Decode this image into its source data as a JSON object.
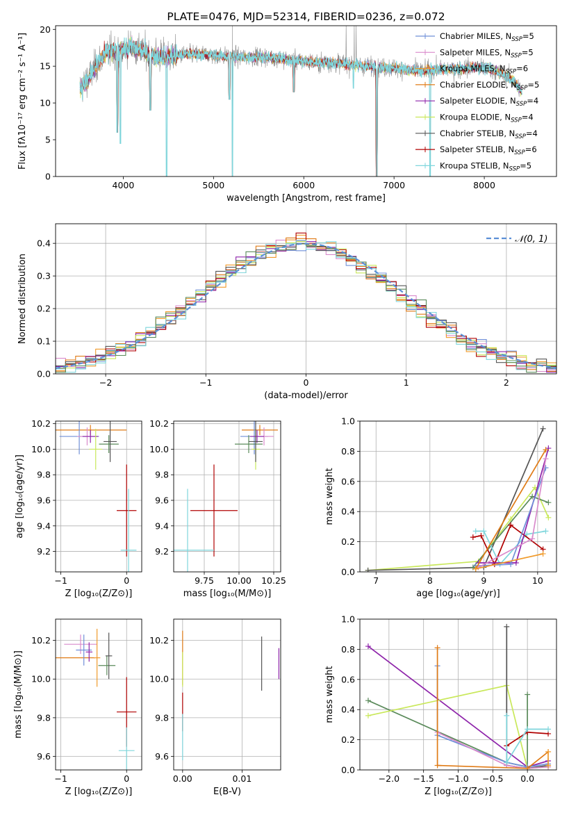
{
  "colors": {
    "chabrier_miles": "#6f8fd8",
    "salpeter_miles": "#d98acb",
    "kroupa_miles": "#f09a2a",
    "chabrier_elodie": "#e07b16",
    "salpeter_elodie": "#8e24aa",
    "kroupa_elodie": "#c9e85a",
    "chabrier_stelib": "#555555",
    "salpeter_stelib": "#b00000",
    "kroupa_stelib": "#7fd6dc",
    "green_stelib": "#5a8a5a",
    "data": "#888888",
    "normal": "#5b8fd6",
    "grid": "#b0b0b0"
  },
  "chart_data": [
    {
      "type": "line",
      "title": "PLATE=0476, MJD=52314, FIBERID=0236, z=0.072",
      "xlabel": "wavelength [Angstrom, rest frame]",
      "ylabel": "Flux [fλ10⁻¹⁷ erg cm⁻² s⁻¹ A⁻¹]",
      "xlim": [
        3250,
        8800
      ],
      "ylim": [
        0,
        20.5
      ],
      "xticks": [
        4000,
        5000,
        6000,
        7000,
        8000
      ],
      "yticks": [
        0,
        5,
        10,
        15,
        20
      ],
      "grid": false,
      "legend_position": "top-right",
      "legend": [
        {
          "label": "Chabrier MILES, N",
          "sub": "SSP",
          "suffix": "=5",
          "color_key": "chabrier_miles"
        },
        {
          "label": "Salpeter MILES, N",
          "sub": "SSP",
          "suffix": "=5",
          "color_key": "salpeter_miles"
        },
        {
          "label": "Kroupa MILES, N",
          "sub": "SSP",
          "suffix": "=6",
          "color_key": "kroupa_miles"
        },
        {
          "label": "Chabrier ELODIE, N",
          "sub": "SSP",
          "suffix": "=5",
          "color_key": "chabrier_elodie"
        },
        {
          "label": "Salpeter ELODIE, N",
          "sub": "SSP",
          "suffix": "=4",
          "color_key": "salpeter_elodie"
        },
        {
          "label": "Kroupa ELODIE, N",
          "sub": "SSP",
          "suffix": "=4",
          "color_key": "kroupa_elodie"
        },
        {
          "label": "Chabrier STELIB, N",
          "sub": "SSP",
          "suffix": "=4",
          "color_key": "chabrier_stelib"
        },
        {
          "label": "Salpeter STELIB, N",
          "sub": "SSP",
          "suffix": "=6",
          "color_key": "salpeter_stelib"
        },
        {
          "label": "Kroupa STELIB, N",
          "sub": "SSP",
          "suffix": "=5",
          "color_key": "kroupa_stelib"
        }
      ],
      "spectrum_anchors": [
        [
          3520,
          12
        ],
        [
          3600,
          13
        ],
        [
          3700,
          15
        ],
        [
          3800,
          16.8
        ],
        [
          3950,
          17.2
        ],
        [
          4100,
          17.6
        ],
        [
          4300,
          16.5
        ],
        [
          4500,
          16.3
        ],
        [
          4700,
          16.6
        ],
        [
          4900,
          16.6
        ],
        [
          5100,
          16.4
        ],
        [
          5300,
          16.2
        ],
        [
          5500,
          16.3
        ],
        [
          5700,
          16.1
        ],
        [
          5900,
          15.8
        ],
        [
          6100,
          15.5
        ],
        [
          6300,
          15.5
        ],
        [
          6500,
          15.3
        ],
        [
          6700,
          15.0
        ],
        [
          6900,
          14.8
        ],
        [
          7100,
          14.6
        ],
        [
          7300,
          14.3
        ],
        [
          7500,
          14.6
        ],
        [
          7700,
          14.6
        ],
        [
          7900,
          14.9
        ],
        [
          8100,
          14.5
        ],
        [
          8300,
          13.3
        ],
        [
          8420,
          11.5
        ]
      ],
      "spectrum_dips": [
        [
          3933,
          6
        ],
        [
          3968,
          4.5
        ],
        [
          4300,
          9
        ],
        [
          4480,
          0
        ],
        [
          5175,
          10.5
        ],
        [
          5210,
          0
        ],
        [
          5890,
          11.5
        ],
        [
          6550,
          12
        ],
        [
          6810,
          0
        ],
        [
          7400,
          0
        ]
      ],
      "spectrum_spikes": [
        [
          5210,
          20.5
        ],
        [
          6470,
          20.5
        ],
        [
          6560,
          20.5
        ],
        [
          6580,
          20.5
        ]
      ]
    },
    {
      "type": "histogram",
      "title": "",
      "xlabel": "(data-model)/error",
      "ylabel": "Normed distribution",
      "xlim": [
        -2.5,
        2.5
      ],
      "ylim": [
        0,
        0.46
      ],
      "xticks": [
        -2,
        -1,
        0,
        1,
        2
      ],
      "yticks": [
        0.0,
        0.1,
        0.2,
        0.3,
        0.4
      ],
      "grid": true,
      "legend_position": "top-right",
      "legend": [
        {
          "label": "𝒩(0, 1)",
          "color_key": "normal",
          "dashed": true
        }
      ],
      "bin_width": 0.1,
      "series_keys": [
        "chabrier_miles",
        "salpeter_miles",
        "kroupa_miles",
        "chabrier_elodie",
        "salpeter_elodie",
        "kroupa_elodie",
        "chabrier_stelib",
        "salpeter_stelib",
        "kroupa_stelib",
        "green_stelib"
      ]
    },
    {
      "type": "scatter",
      "title": "",
      "xlabel": "Z [log₁₀(Z/Z⊙)]",
      "ylabel": "age  [log₁₀(age/yr)]",
      "xlim": [
        -1.08,
        0.23
      ],
      "ylim": [
        9.04,
        10.22
      ],
      "xticks": [
        -1,
        0
      ],
      "yticks": [
        9.2,
        9.4,
        9.6,
        9.8,
        10.0,
        10.2
      ],
      "grid": true,
      "points": [
        {
          "key": "chabrier_elodie",
          "x": -0.55,
          "y": 10.15,
          "ex": 0.55,
          "ey": 0.04
        },
        {
          "key": "chabrier_miles",
          "x": -0.72,
          "y": 10.1,
          "ex": 0.3,
          "ey": 0.14
        },
        {
          "key": "salpeter_miles",
          "x": -0.6,
          "y": 10.1,
          "ex": 0.15,
          "ey": 0.07
        },
        {
          "key": "salpeter_elodie",
          "x": -0.55,
          "y": 10.1,
          "ex": 0.12,
          "ey": 0.05
        },
        {
          "key": "kroupa_elodie",
          "x": -0.47,
          "y": 10.0,
          "ex": 0.1,
          "ey": 0.16
        },
        {
          "key": "green_stelib",
          "x": -0.27,
          "y": 10.04,
          "ex": 0.15,
          "ey": 0.07
        },
        {
          "key": "chabrier_stelib",
          "x": -0.25,
          "y": 10.06,
          "ex": 0.1,
          "ey": 0.16
        },
        {
          "key": "salpeter_stelib",
          "x": 0.0,
          "y": 9.52,
          "ex": 0.15,
          "ey": 0.36
        },
        {
          "key": "kroupa_stelib",
          "x": 0.03,
          "y": 9.21,
          "ex": 0.12,
          "ey": 0.48
        }
      ]
    },
    {
      "type": "scatter",
      "title": "",
      "xlabel": "mass [log₁₀(M/M⊙)]",
      "ylabel": "",
      "xlim": [
        9.53,
        10.3
      ],
      "ylim": [
        9.04,
        10.22
      ],
      "xticks": [
        9.75,
        10.0,
        10.25
      ],
      "tick_labels": [
        "9.75",
        "10.00",
        "10.25"
      ],
      "yticks": [
        9.2,
        9.4,
        9.6,
        9.8,
        10.0,
        10.2
      ],
      "grid": true,
      "points": [
        {
          "key": "chabrier_elodie",
          "x": 10.15,
          "y": 10.15,
          "ex": 0.13,
          "ey": 0.04
        },
        {
          "key": "chabrier_miles",
          "x": 10.11,
          "y": 10.1,
          "ex": 0.1,
          "ey": 0.14
        },
        {
          "key": "salpeter_miles",
          "x": 10.18,
          "y": 10.1,
          "ex": 0.07,
          "ey": 0.07
        },
        {
          "key": "salpeter_elodie",
          "x": 10.13,
          "y": 10.1,
          "ex": 0.05,
          "ey": 0.05
        },
        {
          "key": "kroupa_elodie",
          "x": 10.12,
          "y": 10.0,
          "ex": 0.03,
          "ey": 0.16
        },
        {
          "key": "green_stelib",
          "x": 10.07,
          "y": 10.04,
          "ex": 0.1,
          "ey": 0.07
        },
        {
          "key": "chabrier_stelib",
          "x": 10.12,
          "y": 10.06,
          "ex": 0.05,
          "ey": 0.16
        },
        {
          "key": "salpeter_stelib",
          "x": 9.82,
          "y": 9.52,
          "ex": 0.17,
          "ey": 0.36
        },
        {
          "key": "kroupa_stelib",
          "x": 9.63,
          "y": 9.21,
          "ex": 0.19,
          "ey": 0.48
        }
      ]
    },
    {
      "type": "line",
      "title": "",
      "xlabel": "age  [log₁₀(age/yr)]",
      "ylabel": "mass weight",
      "xlim": [
        6.7,
        10.35
      ],
      "ylim": [
        0,
        1.0
      ],
      "xticks": [
        7,
        8,
        9,
        10
      ],
      "yticks": [
        0.0,
        0.2,
        0.4,
        0.6,
        0.8,
        1.0
      ],
      "grid": true,
      "series": [
        {
          "key": "kroupa_elodie",
          "x": [
            6.85,
            8.9,
            9.5,
            9.95,
            10.2
          ],
          "y": [
            0.01,
            0.07,
            0.35,
            0.56,
            0.36
          ]
        },
        {
          "key": "chabrier_stelib",
          "x": [
            6.85,
            9.0,
            10.1
          ],
          "y": [
            0.01,
            0.03,
            0.95
          ]
        },
        {
          "key": "green_stelib",
          "x": [
            8.8,
            9.9,
            10.2
          ],
          "y": [
            0.03,
            0.5,
            0.46
          ]
        },
        {
          "key": "kroupa_stelib",
          "x": [
            8.85,
            9.0,
            9.3,
            9.8,
            10.15
          ],
          "y": [
            0.27,
            0.27,
            0.05,
            0.25,
            0.27
          ]
        },
        {
          "key": "salpeter_stelib",
          "x": [
            8.8,
            8.95,
            9.2,
            9.5,
            10.1
          ],
          "y": [
            0.23,
            0.24,
            0.05,
            0.31,
            0.15
          ]
        },
        {
          "key": "salpeter_elodie",
          "x": [
            8.9,
            9.6,
            10.2
          ],
          "y": [
            0.06,
            0.06,
            0.82
          ]
        },
        {
          "key": "chabrier_miles",
          "x": [
            8.85,
            9.5,
            10.15
          ],
          "y": [
            0.04,
            0.05,
            0.69
          ]
        },
        {
          "key": "salpeter_miles",
          "x": [
            8.9,
            9.9,
            10.15
          ],
          "y": [
            0.03,
            0.22,
            0.75
          ]
        },
        {
          "key": "chabrier_elodie",
          "x": [
            8.85,
            10.15
          ],
          "y": [
            0.02,
            0.81
          ]
        },
        {
          "key": "kroupa_miles",
          "x": [
            8.85,
            10.1
          ],
          "y": [
            0.02,
            0.12
          ]
        }
      ]
    },
    {
      "type": "scatter",
      "title": "",
      "xlabel": "Z [log₁₀(Z/Z⊙)]",
      "ylabel": "mass [log₁₀(M/M⊙)]",
      "xlim": [
        -1.08,
        0.23
      ],
      "ylim": [
        9.53,
        10.31
      ],
      "xticks": [
        -1,
        0
      ],
      "yticks": [
        9.6,
        9.8,
        10.0,
        10.2
      ],
      "grid": true,
      "points": [
        {
          "key": "chabrier_elodie",
          "x": -0.78,
          "y": 10.11,
          "ex": 0.3,
          "ey": 0.0
        },
        {
          "key": "salpeter_miles",
          "x": -0.7,
          "y": 10.18,
          "ex": 0.25,
          "ey": 0.05
        },
        {
          "key": "chabrier_miles",
          "x": -0.65,
          "y": 10.15,
          "ex": 0.12,
          "ey": 0.08
        },
        {
          "key": "salpeter_elodie",
          "x": -0.57,
          "y": 10.14,
          "ex": 0.05,
          "ey": 0.05
        },
        {
          "key": "kroupa_miles",
          "x": -0.45,
          "y": 10.11,
          "ex": 0.05,
          "ey": 0.15
        },
        {
          "key": "green_stelib",
          "x": -0.3,
          "y": 10.07,
          "ex": 0.13,
          "ey": 0.05
        },
        {
          "key": "chabrier_stelib",
          "x": -0.27,
          "y": 10.12,
          "ex": 0.05,
          "ey": 0.12
        },
        {
          "key": "salpeter_stelib",
          "x": 0.0,
          "y": 9.83,
          "ex": 0.15,
          "ey": 0.18
        },
        {
          "key": "kroupa_stelib",
          "x": 0.0,
          "y": 9.63,
          "ex": 0.12,
          "ey": 0.12
        }
      ]
    },
    {
      "type": "scatter",
      "title": "",
      "xlabel": "E(B-V)",
      "ylabel": "",
      "xlim": [
        -0.0015,
        0.0165
      ],
      "ylim": [
        9.53,
        10.31
      ],
      "xticks": [
        0.0,
        0.01
      ],
      "tick_labels": [
        "0.00",
        "0.01"
      ],
      "yticks": [
        9.6,
        9.8,
        10.0,
        10.2
      ],
      "grid": true,
      "points": [
        {
          "key": "chabrier_elodie",
          "x": 0.0,
          "y": 10.11,
          "ex": 0,
          "ey": 0.14
        },
        {
          "key": "kroupa_elodie",
          "x": 0.0,
          "y": 10.05,
          "ex": 0,
          "ey": 0.09
        },
        {
          "key": "salpeter_stelib",
          "x": 0.0,
          "y": 9.83,
          "ex": 0,
          "ey": 0.1
        },
        {
          "key": "kroupa_stelib",
          "x": 0.0,
          "y": 9.7,
          "ex": 0,
          "ey": 0.12
        },
        {
          "key": "chabrier_stelib",
          "x": 0.0133,
          "y": 10.08,
          "ex": 0,
          "ey": 0.14
        },
        {
          "key": "salpeter_elodie",
          "x": 0.0162,
          "y": 10.08,
          "ex": 0,
          "ey": 0.08
        }
      ]
    },
    {
      "type": "line",
      "title": "",
      "xlabel": "Z [log₁₀(Z/Z⊙)]",
      "ylabel": "mass weight",
      "xlim": [
        -2.42,
        0.42
      ],
      "ylim": [
        0,
        1.0
      ],
      "xticks": [
        -2.0,
        -1.5,
        -1.0,
        -0.5,
        0.0
      ],
      "tick_labels": [
        "−2.0",
        "−1.5",
        "−1.0",
        "−0.5",
        "0.0"
      ],
      "yticks": [
        0.0,
        0.2,
        0.4,
        0.6,
        0.8,
        1.0
      ],
      "grid": true,
      "series": [
        {
          "key": "salpeter_elodie",
          "x": [
            -2.3,
            0.0,
            0.3
          ],
          "y": [
            0.82,
            0.02,
            0.06
          ]
        },
        {
          "key": "green_stelib",
          "x": [
            -2.3,
            -0.3,
            0.0,
            0.0
          ],
          "y": [
            0.46,
            0.05,
            0.02,
            0.5
          ]
        },
        {
          "key": "kroupa_elodie",
          "x": [
            -2.3,
            -0.3,
            0.0,
            0.3
          ],
          "y": [
            0.36,
            0.56,
            0.01,
            0.02
          ]
        },
        {
          "key": "chabrier_stelib",
          "x": [
            -0.3,
            -0.3,
            0.0,
            0.3
          ],
          "y": [
            0.95,
            0.03,
            0.01,
            0.03
          ]
        },
        {
          "key": "chabrier_miles",
          "x": [
            -1.3,
            -1.3,
            -0.3,
            0.0,
            0.3
          ],
          "y": [
            0.69,
            0.23,
            0.05,
            0.02,
            0.04
          ]
        },
        {
          "key": "salpeter_miles",
          "x": [
            -1.3,
            -0.3,
            0.0,
            0.3
          ],
          "y": [
            0.25,
            0.03,
            0.01,
            0.02
          ]
        },
        {
          "key": "chabrier_elodie",
          "x": [
            -1.3,
            -1.3,
            0.0,
            0.3
          ],
          "y": [
            0.81,
            0.03,
            0.01,
            0.12
          ]
        },
        {
          "key": "salpeter_stelib",
          "x": [
            -0.3,
            0.0,
            0.3
          ],
          "y": [
            0.16,
            0.25,
            0.24
          ]
        },
        {
          "key": "kroupa_stelib",
          "x": [
            -0.3,
            -0.3,
            0.0,
            0.3
          ],
          "y": [
            0.36,
            0.05,
            0.27,
            0.27
          ]
        },
        {
          "key": "kroupa_miles",
          "x": [
            0.3,
            0.3
          ],
          "y": [
            0.03,
            0.12
          ]
        }
      ]
    }
  ]
}
